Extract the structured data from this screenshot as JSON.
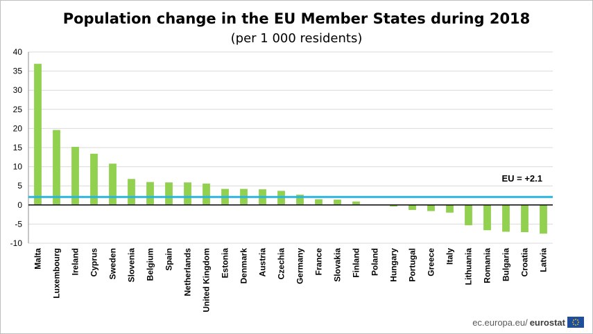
{
  "chart_data": {
    "type": "bar",
    "title": "Population change in the EU Member States during 2018",
    "subtitle": "(per 1 000 residents)",
    "categories": [
      "Malta",
      "Luxembourg",
      "Ireland",
      "Cyprus",
      "Sweden",
      "Slovenia",
      "Belgium",
      "Spain",
      "Netherlands",
      "United Kingdom",
      "Estonia",
      "Denmark",
      "Austria",
      "Czechia",
      "Germany",
      "France",
      "Slovakia",
      "Finland",
      "Poland",
      "Hungary",
      "Portugal",
      "Greece",
      "Italy",
      "Lithuania",
      "Romania",
      "Bulgaria",
      "Croatia",
      "Latvia"
    ],
    "values": [
      36.9,
      19.6,
      15.2,
      13.4,
      10.8,
      6.8,
      6.0,
      5.9,
      5.9,
      5.6,
      4.2,
      4.2,
      4.1,
      3.7,
      2.7,
      1.5,
      1.4,
      0.9,
      0.0,
      -0.4,
      -1.3,
      -1.6,
      -2.0,
      -5.3,
      -6.6,
      -7.0,
      -7.1,
      -7.5
    ],
    "ylim": [
      -10,
      40
    ],
    "yticks": [
      -10,
      -5,
      0,
      5,
      10,
      15,
      20,
      25,
      30,
      35,
      40
    ],
    "reference_line": {
      "value": 2.1,
      "label": "EU = +2.1",
      "color": "#2bb4dd"
    },
    "bar_color": "#92d050",
    "grid": true,
    "xlabel": "",
    "ylabel": ""
  },
  "footer": {
    "site": "ec.europa.eu/",
    "brand": "eurostat"
  }
}
